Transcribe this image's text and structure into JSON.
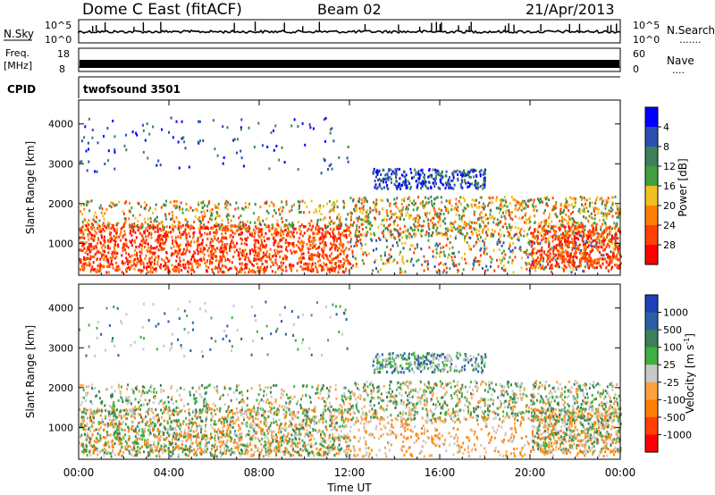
{
  "header": {
    "station": "Dome C East (fitACF)",
    "beam": "Beam 02",
    "date": "21/Apr/2013"
  },
  "top_panels": {
    "nsky": {
      "label": "N.Sky",
      "ticks": [
        "10^5",
        "10^0"
      ],
      "right_ticks": [
        "10^5",
        "10^0"
      ],
      "right_label": "N.Search",
      "right_label_dots": "......."
    },
    "freq": {
      "label_line1": "Freq.",
      "label_line2": "[MHz]",
      "ticks": [
        "18",
        "8"
      ],
      "right_ticks": [
        "60",
        "0"
      ],
      "right_label": "Nave",
      "right_label_dots": "...."
    },
    "cpid": {
      "label": "CPID",
      "text": "twofsound 3501"
    }
  },
  "chart_data": [
    {
      "type": "heatmap",
      "name": "power",
      "ylabel": "Slant Range [km]",
      "yticks": [
        "1000",
        "2000",
        "3000",
        "4000"
      ],
      "ylim": [
        200,
        4600
      ],
      "xlim": [
        0,
        24
      ],
      "colorbar": {
        "label": "Power [dB]",
        "ticks": [
          "4",
          "8",
          "12",
          "16",
          "20",
          "24",
          "28"
        ],
        "colors": [
          "#0000ff",
          "#2a4fb4",
          "#3d7f5a",
          "#40a040",
          "#f0c020",
          "#ff8000",
          "#ff4000",
          "#ff0000"
        ]
      }
    },
    {
      "type": "heatmap",
      "name": "velocity",
      "ylabel": "Slant Range [km]",
      "yticks": [
        "1000",
        "2000",
        "3000",
        "4000"
      ],
      "ylim": [
        200,
        4600
      ],
      "xlim": [
        0,
        24
      ],
      "colorbar": {
        "label": "Velocity [m s-1]",
        "label_main": "Velocity [m s",
        "label_sup": "-1",
        "label_end": "]",
        "ticks": [
          "1000",
          "500",
          "100",
          "25",
          "-25",
          "-100",
          "-500",
          "-1000"
        ],
        "colors": [
          "#1f3fb8",
          "#2a5fa8",
          "#3d7f5a",
          "#40b040",
          "#c8c8c8",
          "#ffa040",
          "#ff8000",
          "#ff4000",
          "#ff0000"
        ]
      }
    }
  ],
  "xaxis": {
    "label": "Time UT",
    "ticks": [
      "00:00",
      "04:00",
      "08:00",
      "12:00",
      "16:00",
      "20:00",
      "00:00"
    ],
    "tick_hours": [
      0,
      4,
      8,
      12,
      16,
      20,
      24
    ]
  }
}
